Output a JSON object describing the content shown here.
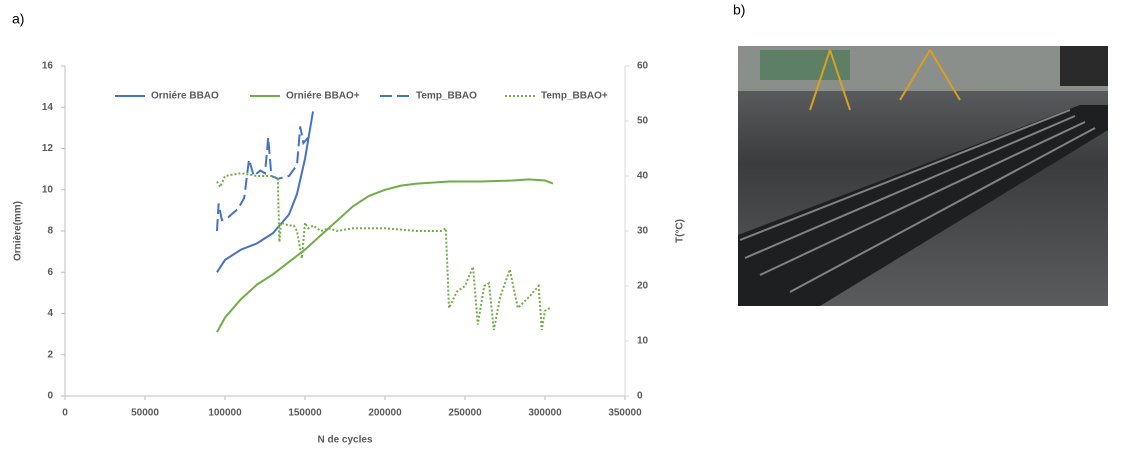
{
  "panel_labels": [
    "a)",
    "b)"
  ],
  "chart_data": {
    "type": "line",
    "y_title": "Ornière(mm)",
    "y2_title": "T(°C)",
    "x_title": "N de cycles",
    "xlim": [
      0,
      350000
    ],
    "xticks": [
      0,
      50000,
      100000,
      150000,
      200000,
      250000,
      300000,
      350000
    ],
    "ylim": [
      0,
      16
    ],
    "yticks": [
      0,
      2,
      4,
      6,
      8,
      10,
      12,
      14,
      16
    ],
    "y2lim": [
      0,
      60
    ],
    "y2ticks": [
      0,
      10,
      20,
      30,
      40,
      50,
      60
    ],
    "legend": "top",
    "series": [
      {
        "name": "Orniére BBAO",
        "color": "#4472c4",
        "line_style": "solid",
        "x": [
          95000,
          100000,
          110000,
          120000,
          130000,
          140000,
          145000,
          150000,
          155000
        ],
        "values": [
          6,
          6.6,
          7.1,
          7.4,
          7.9,
          8.8,
          9.8,
          11.5,
          13.8
        ]
      },
      {
        "name": "Orniére BBAO+",
        "color": "#70ad47",
        "line_style": "solid",
        "x": [
          95000,
          100000,
          110000,
          120000,
          130000,
          140000,
          150000,
          160000,
          170000,
          180000,
          190000,
          200000,
          210000,
          220000,
          240000,
          260000,
          280000,
          290000,
          300000,
          305000
        ],
        "values": [
          3.1,
          3.8,
          4.7,
          5.4,
          5.9,
          6.5,
          7.1,
          7.8,
          8.5,
          9.2,
          9.7,
          10.0,
          10.2,
          10.3,
          10.4,
          10.4,
          10.45,
          10.5,
          10.45,
          10.3
        ]
      },
      {
        "name": "Temp_BBAO",
        "color": "#4472c4",
        "line_style": "dashed",
        "axis": "y2",
        "x": [
          95000,
          96000,
          98000,
          102000,
          108000,
          112000,
          115000,
          118000,
          122000,
          125000,
          127000,
          129000,
          133000,
          140000,
          145000,
          147000,
          149000,
          152000
        ],
        "values": [
          30,
          35,
          32,
          32.5,
          34,
          36,
          43,
          40,
          41,
          40.5,
          47,
          40,
          39.5,
          40,
          42,
          49,
          46,
          47
        ]
      },
      {
        "name": "Temp_BBAO+",
        "color": "#70ad47",
        "line_style": "dotted",
        "axis": "y2",
        "x": [
          95000,
          97000,
          100000,
          110000,
          120000,
          130000,
          133000,
          134000,
          135000,
          140000,
          143000,
          145000,
          148000,
          150000,
          152000,
          155000,
          160000,
          165000,
          170000,
          180000,
          200000,
          220000,
          235000,
          238000,
          240000,
          245000,
          250000,
          255000,
          258000,
          262000,
          265000,
          268000,
          272000,
          278000,
          283000,
          290000,
          296000,
          298000,
          300000,
          303000
        ],
        "values": [
          39,
          38,
          40,
          40.5,
          40,
          40,
          39.5,
          28,
          31.5,
          31,
          31,
          30,
          25,
          31.5,
          30.5,
          31,
          30,
          30.5,
          30,
          30.5,
          30.5,
          30,
          30,
          30.5,
          16,
          19,
          20,
          23.5,
          13,
          20,
          20.5,
          12,
          18,
          23,
          16,
          18,
          20,
          12,
          15.5,
          16
        ]
      }
    ]
  }
}
